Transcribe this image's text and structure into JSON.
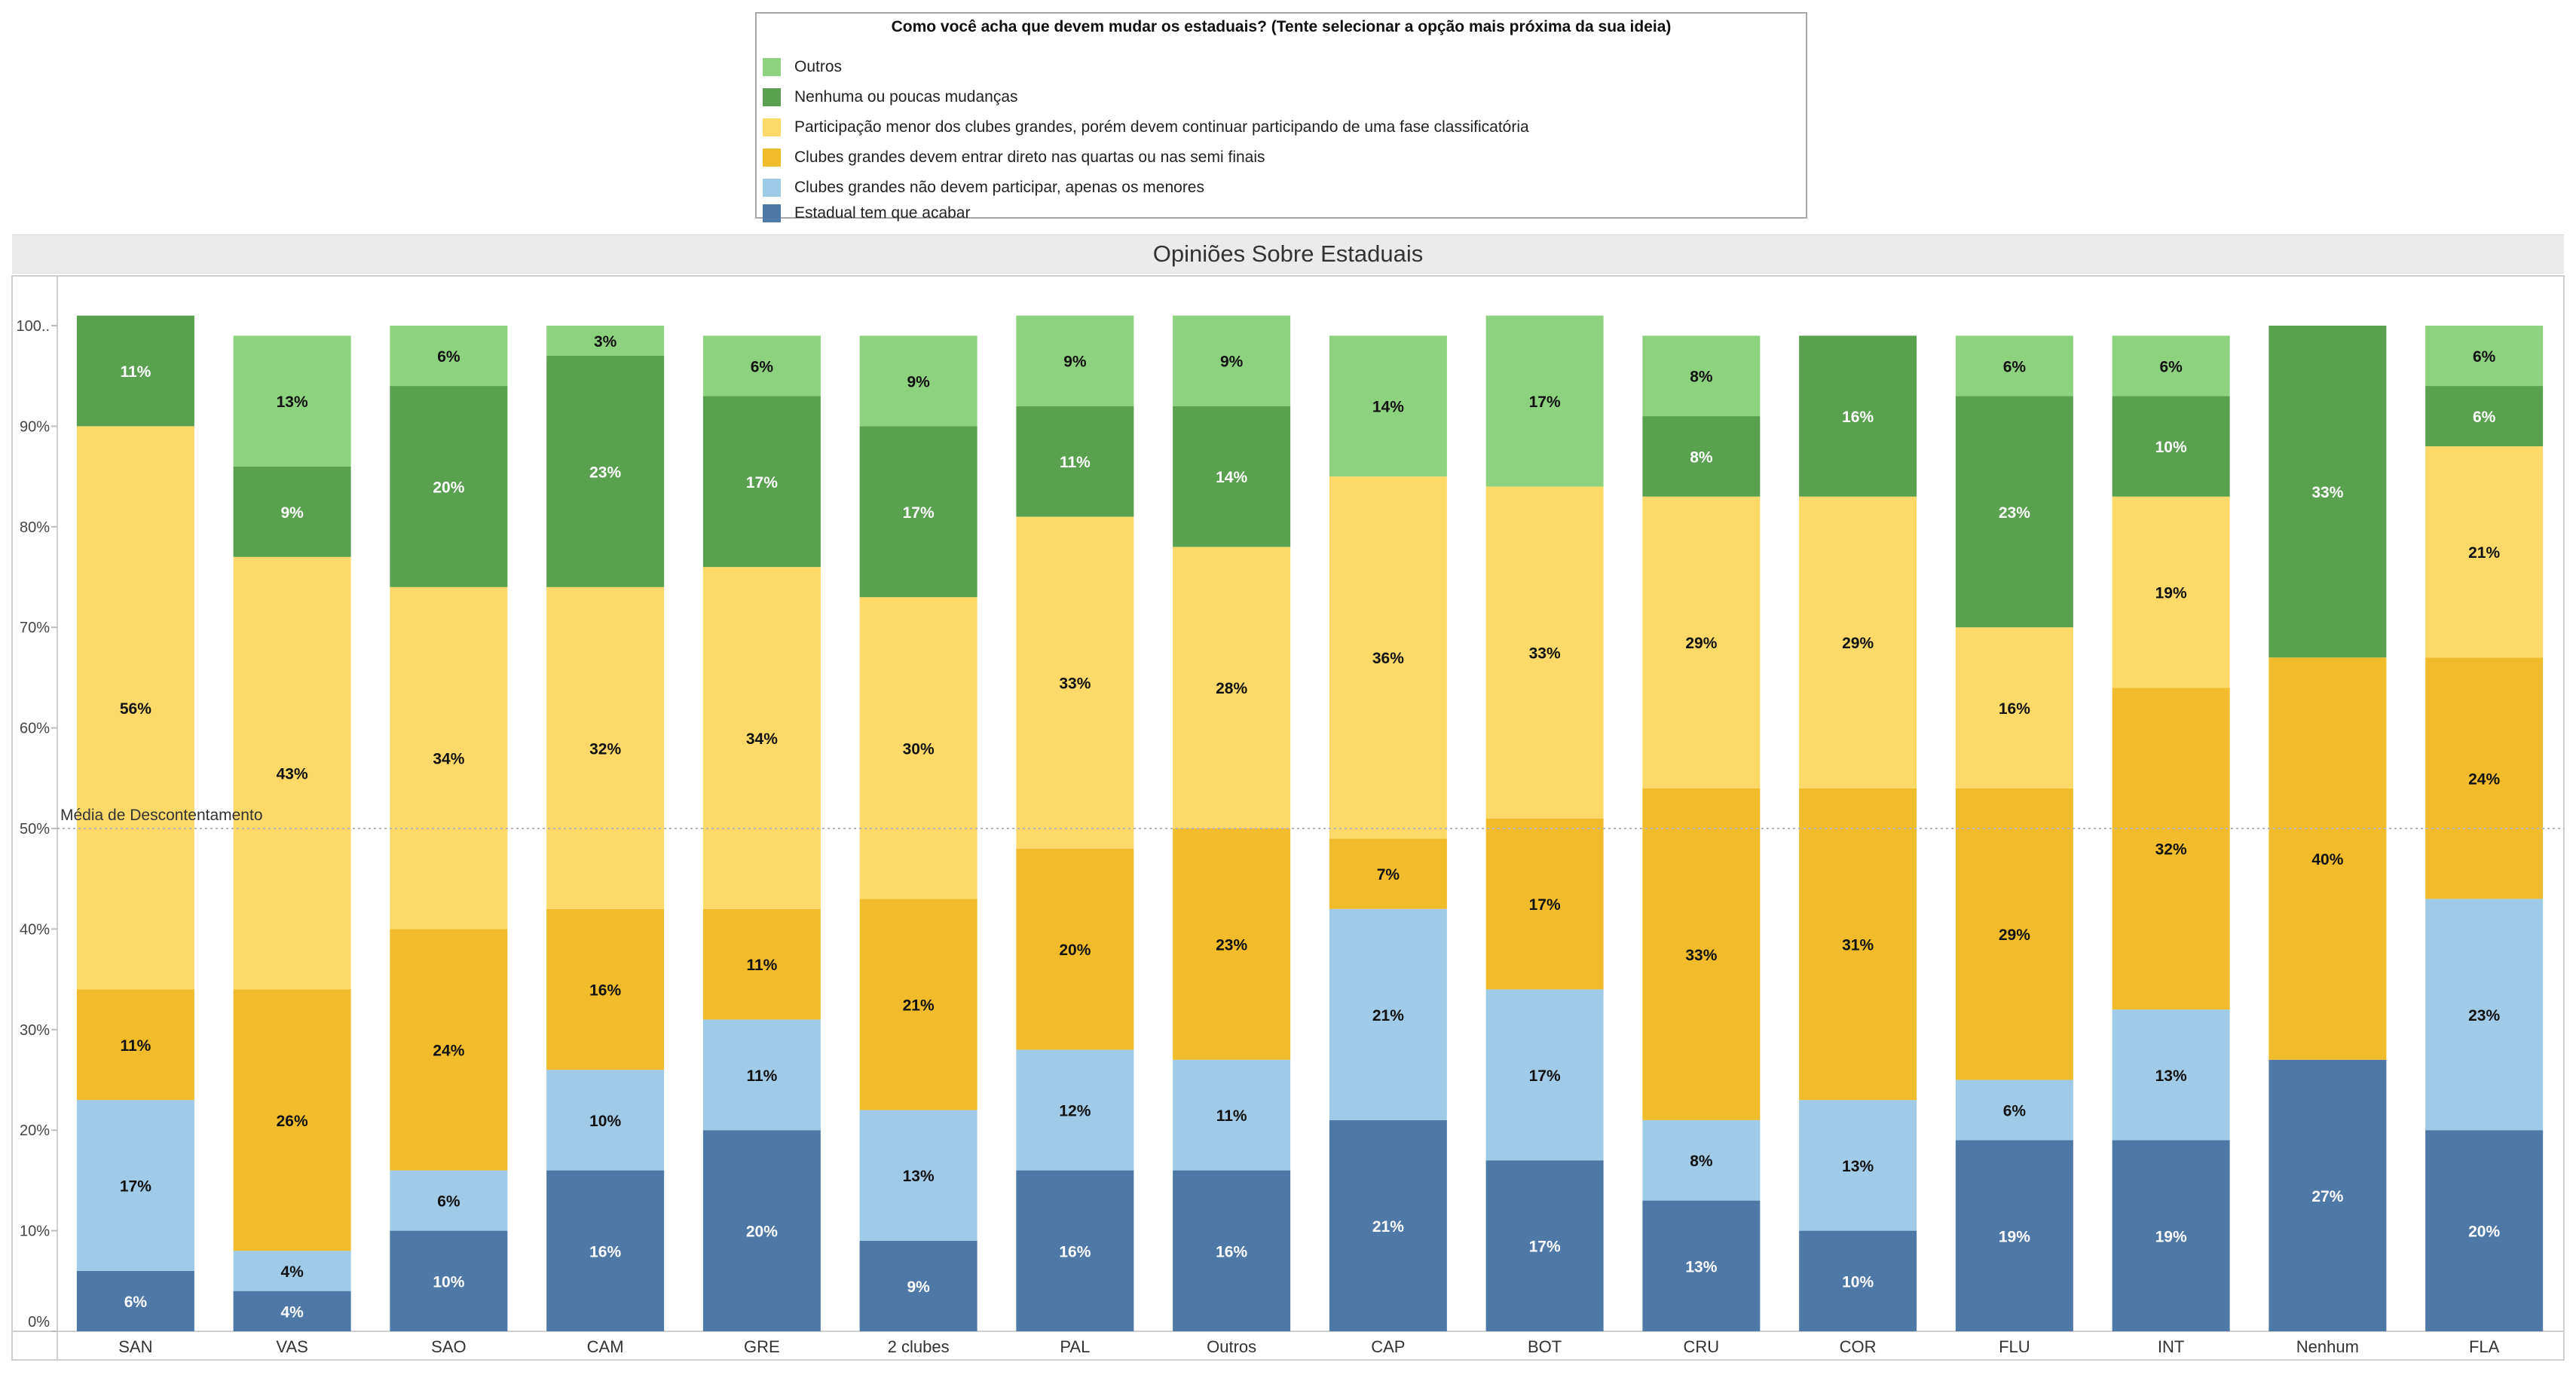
{
  "legend": {
    "title": "Como você acha que devem mudar os estaduais? (Tente selecionar a opção mais próxima da sua ideia)",
    "items": [
      {
        "label": "Outros",
        "color": "#8dd27e"
      },
      {
        "label": "Nenhuma ou poucas mudanças",
        "color": "#59a14f"
      },
      {
        "label": "Participação menor dos clubes grandes, porém devem continuar participando de uma fase classificatória",
        "color": "#fdd96a"
      },
      {
        "label": "Clubes grandes devem entrar direto nas quartas ou nas semi finais",
        "color": "#f0bc2c"
      },
      {
        "label": "Clubes grandes não devem participar, apenas os menores",
        "color": "#a0cbe8"
      },
      {
        "label": "Estadual tem que acabar",
        "color": "#4e79a7"
      }
    ]
  },
  "chart_data": {
    "type": "bar",
    "stacked": true,
    "title": "Opiniões Sobre Estaduais",
    "xlabel": "",
    "ylabel": "",
    "ylim": [
      0,
      100
    ],
    "yticks": [
      "0%",
      "10%",
      "20%",
      "30%",
      "40%",
      "50%",
      "60%",
      "70%",
      "80%",
      "90%",
      "100.."
    ],
    "reference_line": {
      "label": "Média de Descontentamento",
      "value": 50
    },
    "categories": [
      "SAN",
      "VAS",
      "SAO",
      "CAM",
      "GRE",
      "2 clubes",
      "PAL",
      "Outros",
      "CAP",
      "BOT",
      "CRU",
      "COR",
      "FLU",
      "INT",
      "Nenhum",
      "FLA"
    ],
    "series": [
      {
        "name": "Estadual tem que acabar",
        "color": "#4e79a7",
        "label_color": "#ffffff",
        "values": [
          6,
          4,
          10,
          16,
          20,
          9,
          16,
          16,
          21,
          17,
          13,
          10,
          19,
          19,
          27,
          20
        ]
      },
      {
        "name": "Clubes grandes não devem participar, apenas os menores",
        "color": "#a0cbe8",
        "label_color": "#111111",
        "values": [
          17,
          4,
          6,
          10,
          11,
          13,
          12,
          11,
          21,
          17,
          8,
          13,
          6,
          13,
          0,
          23
        ]
      },
      {
        "name": "Clubes grandes devem entrar direto nas quartas ou nas semi finais",
        "color": "#f0bc2c",
        "label_color": "#111111",
        "values": [
          11,
          26,
          24,
          16,
          11,
          21,
          20,
          23,
          7,
          17,
          33,
          31,
          29,
          32,
          40,
          24
        ]
      },
      {
        "name": "Participação menor dos clubes grandes, porém devem continuar participando de uma fase classificatória",
        "color": "#fdd96a",
        "label_color": "#111111",
        "values": [
          56,
          43,
          34,
          32,
          34,
          30,
          33,
          28,
          36,
          33,
          29,
          29,
          16,
          19,
          0,
          21
        ]
      },
      {
        "name": "Nenhuma ou poucas mudanças",
        "color": "#59a14f",
        "label_color": "#ffffff",
        "values": [
          11,
          9,
          20,
          23,
          17,
          17,
          11,
          14,
          0,
          0,
          8,
          16,
          23,
          10,
          33,
          6
        ]
      },
      {
        "name": "Outros",
        "color": "#8dd27e",
        "label_color": "#111111",
        "values": [
          0,
          13,
          6,
          3,
          6,
          9,
          9,
          9,
          14,
          17,
          8,
          0,
          6,
          6,
          0,
          6
        ]
      }
    ]
  }
}
